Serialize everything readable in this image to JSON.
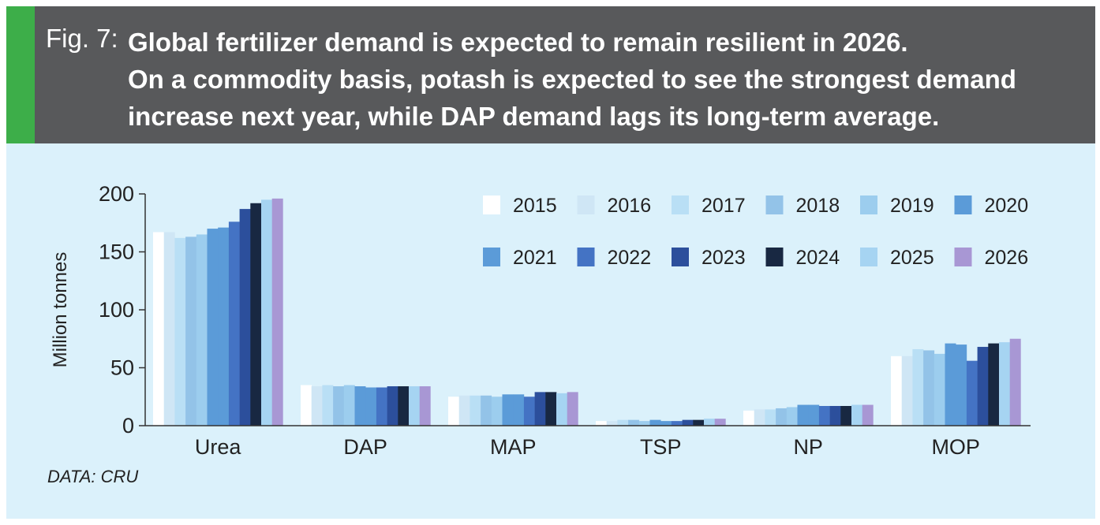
{
  "figure": {
    "label": "Fig. 7:",
    "title_lines": [
      "Global fertilizer demand is expected to remain resilient in 2026.",
      "On a commodity basis, potash is expected to see the strongest demand",
      "increase next year, while DAP demand lags its long-term average."
    ],
    "source": "DATA: CRU"
  },
  "colors": {
    "header_bg": "#58595b",
    "accent": "#3dae49",
    "panel_bg": "#dbf1fb"
  },
  "chart_data": {
    "type": "bar",
    "title": "Global fertilizer demand is expected to remain resilient in 2026.",
    "xlabel": "",
    "ylabel": "Million tonnes",
    "ylim": [
      0,
      200
    ],
    "yticks": [
      0,
      50,
      100,
      150,
      200
    ],
    "grid": false,
    "legend_position": "top-right",
    "categories": [
      "Urea",
      "DAP",
      "MAP",
      "TSP",
      "NP",
      "MOP"
    ],
    "series": [
      {
        "name": "2015",
        "color": "#ffffff",
        "values": [
          167,
          35,
          25,
          4,
          13,
          60
        ]
      },
      {
        "name": "2016",
        "color": "#cfe6f5",
        "values": [
          167,
          34,
          26,
          4,
          14,
          60
        ]
      },
      {
        "name": "2017",
        "color": "#b9dff5",
        "values": [
          162,
          35,
          26,
          5,
          14,
          66
        ]
      },
      {
        "name": "2018",
        "color": "#93c3e8",
        "values": [
          163,
          34,
          26,
          5,
          15,
          65
        ]
      },
      {
        "name": "2019",
        "color": "#9ccdee",
        "values": [
          165,
          35,
          25,
          4,
          16,
          62
        ]
      },
      {
        "name": "2020",
        "color": "#5b9bd8",
        "values": [
          170,
          34,
          27,
          5,
          18,
          71
        ]
      },
      {
        "name": "2021",
        "color": "#5b9bd8",
        "values": [
          171,
          33,
          27,
          4,
          18,
          70
        ]
      },
      {
        "name": "2022",
        "color": "#4473c4",
        "values": [
          176,
          33,
          25,
          4,
          17,
          56
        ]
      },
      {
        "name": "2023",
        "color": "#2c4f9c",
        "values": [
          187,
          34,
          29,
          5,
          17,
          68
        ]
      },
      {
        "name": "2024",
        "color": "#182842",
        "values": [
          192,
          34,
          29,
          5,
          17,
          71
        ]
      },
      {
        "name": "2025",
        "color": "#a6d4f2",
        "values": [
          195,
          34,
          28,
          6,
          18,
          72
        ]
      },
      {
        "name": "2026",
        "color": "#a897d4",
        "values": [
          196,
          34,
          29,
          6,
          18,
          75
        ]
      }
    ]
  }
}
